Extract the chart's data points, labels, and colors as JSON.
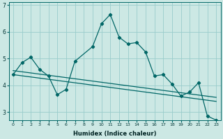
{
  "xlabel": "Humidex (Indice chaleur)",
  "ylabel": "",
  "bg_color": "#cce8e4",
  "grid_color": "#99cccc",
  "line_color": "#006666",
  "xlim": [
    -0.5,
    23.5
  ],
  "ylim": [
    2.7,
    7.1
  ],
  "xticks": [
    0,
    1,
    2,
    3,
    4,
    5,
    6,
    7,
    8,
    9,
    10,
    11,
    12,
    13,
    14,
    15,
    16,
    17,
    18,
    19,
    20,
    21,
    22,
    23
  ],
  "yticks": [
    3,
    4,
    5,
    6,
    7
  ],
  "series1_x": [
    0,
    1,
    2,
    3,
    4,
    5,
    6,
    7,
    9,
    10,
    11,
    12,
    13,
    14,
    15,
    16,
    17,
    18,
    19,
    20,
    21,
    22,
    23
  ],
  "series1_y": [
    4.4,
    4.85,
    5.05,
    4.6,
    4.35,
    3.65,
    3.85,
    4.9,
    5.45,
    6.3,
    6.65,
    5.8,
    5.55,
    5.6,
    5.25,
    4.35,
    4.4,
    4.05,
    3.6,
    3.75,
    4.1,
    2.85,
    2.7
  ],
  "trendline1_x": [
    0,
    23
  ],
  "trendline1_y": [
    4.55,
    3.55
  ],
  "trendline2_x": [
    0,
    23
  ],
  "trendline2_y": [
    4.4,
    3.4
  ]
}
